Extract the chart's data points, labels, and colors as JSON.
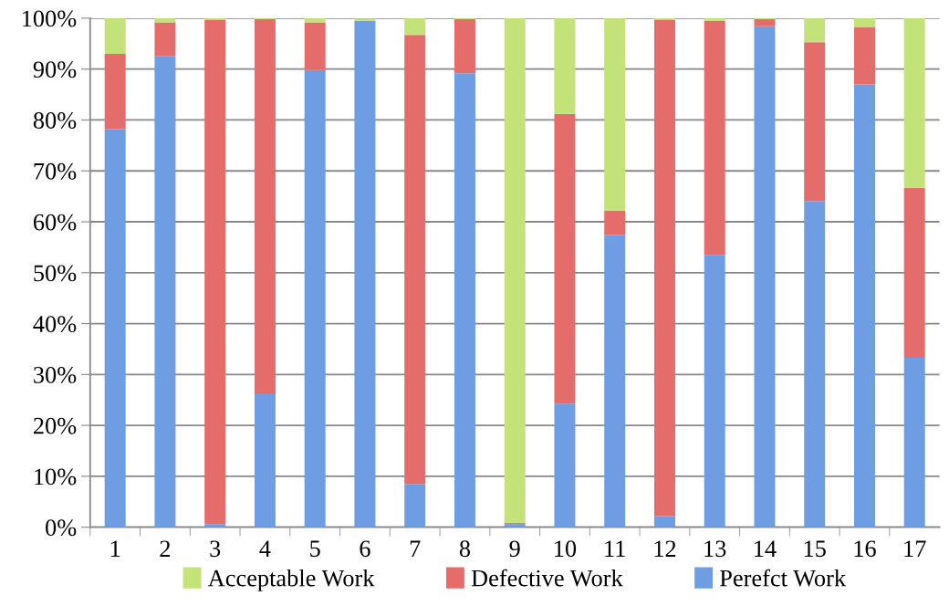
{
  "chart_data": {
    "type": "bar",
    "stacked": true,
    "categories": [
      "1",
      "2",
      "3",
      "4",
      "5",
      "6",
      "7",
      "8",
      "9",
      "10",
      "11",
      "12",
      "13",
      "14",
      "15",
      "16",
      "17"
    ],
    "series": [
      {
        "name": "Perefct Work",
        "color": "#6f9de3",
        "values": [
          78.2,
          92.6,
          0.6,
          26.3,
          89.8,
          99.5,
          8.5,
          89.2,
          0.6,
          24.3,
          57.4,
          2.2,
          53.4,
          98.4,
          64.1,
          87.0,
          33.3
        ]
      },
      {
        "name": "Defective Work",
        "color": "#e46c6a",
        "values": [
          14.8,
          6.6,
          99.1,
          73.5,
          9.4,
          null,
          88.2,
          10.6,
          0.3,
          56.9,
          4.8,
          97.5,
          46.1,
          1.4,
          31.2,
          11.2,
          33.4
        ]
      },
      {
        "name": "Acceptable Work",
        "color": "#c3e27a",
        "values": [
          7.0,
          0.8,
          0.3,
          0.2,
          0.8,
          0.4,
          3.3,
          0.2,
          99.1,
          18.8,
          37.8,
          0.3,
          0.5,
          0.2,
          4.7,
          1.8,
          33.3
        ]
      }
    ],
    "ylim": [
      0,
      100
    ],
    "yticks": [
      {
        "value": 0,
        "label": "0%"
      },
      {
        "value": 10,
        "label": "10%"
      },
      {
        "value": 20,
        "label": "20%"
      },
      {
        "value": 30,
        "label": "30%"
      },
      {
        "value": 40,
        "label": "40%"
      },
      {
        "value": 50,
        "label": "50%"
      },
      {
        "value": 60,
        "label": "60%"
      },
      {
        "value": 70,
        "label": "70%"
      },
      {
        "value": 80,
        "label": "80%"
      },
      {
        "value": 90,
        "label": "90%"
      },
      {
        "value": 100,
        "label": "100%"
      }
    ],
    "grid": "y",
    "legend": "bottom"
  }
}
